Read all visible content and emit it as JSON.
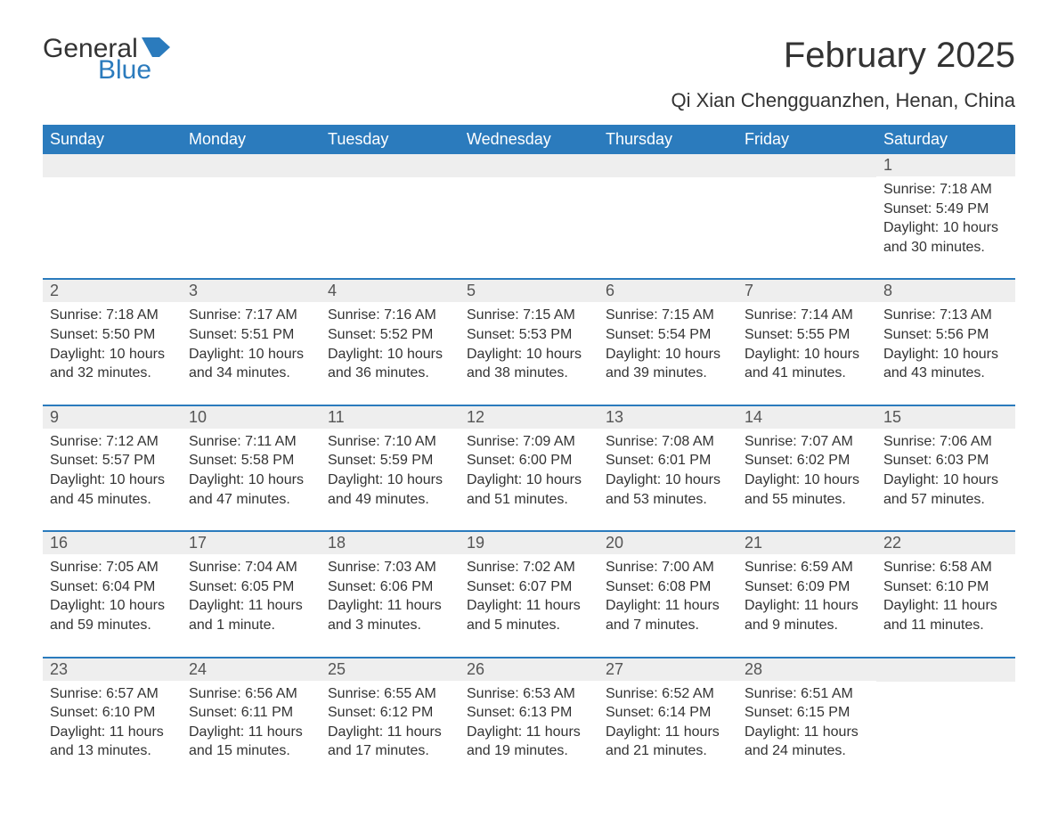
{
  "logo": {
    "text1": "General",
    "text2": "Blue",
    "flag_color": "#2b7bbd"
  },
  "title": "February 2025",
  "subtitle": "Qi Xian Chengguanzhen, Henan, China",
  "colors": {
    "header_bg": "#2b7bbd",
    "header_text": "#ffffff",
    "row_border": "#2b7bbd",
    "daynum_bg": "#eeeeee",
    "body_text": "#333333"
  },
  "day_headers": [
    "Sunday",
    "Monday",
    "Tuesday",
    "Wednesday",
    "Thursday",
    "Friday",
    "Saturday"
  ],
  "weeks": [
    [
      {
        "day": "",
        "sunrise": "",
        "sunset": "",
        "daylight": ""
      },
      {
        "day": "",
        "sunrise": "",
        "sunset": "",
        "daylight": ""
      },
      {
        "day": "",
        "sunrise": "",
        "sunset": "",
        "daylight": ""
      },
      {
        "day": "",
        "sunrise": "",
        "sunset": "",
        "daylight": ""
      },
      {
        "day": "",
        "sunrise": "",
        "sunset": "",
        "daylight": ""
      },
      {
        "day": "",
        "sunrise": "",
        "sunset": "",
        "daylight": ""
      },
      {
        "day": "1",
        "sunrise": "Sunrise: 7:18 AM",
        "sunset": "Sunset: 5:49 PM",
        "daylight": "Daylight: 10 hours and 30 minutes."
      }
    ],
    [
      {
        "day": "2",
        "sunrise": "Sunrise: 7:18 AM",
        "sunset": "Sunset: 5:50 PM",
        "daylight": "Daylight: 10 hours and 32 minutes."
      },
      {
        "day": "3",
        "sunrise": "Sunrise: 7:17 AM",
        "sunset": "Sunset: 5:51 PM",
        "daylight": "Daylight: 10 hours and 34 minutes."
      },
      {
        "day": "4",
        "sunrise": "Sunrise: 7:16 AM",
        "sunset": "Sunset: 5:52 PM",
        "daylight": "Daylight: 10 hours and 36 minutes."
      },
      {
        "day": "5",
        "sunrise": "Sunrise: 7:15 AM",
        "sunset": "Sunset: 5:53 PM",
        "daylight": "Daylight: 10 hours and 38 minutes."
      },
      {
        "day": "6",
        "sunrise": "Sunrise: 7:15 AM",
        "sunset": "Sunset: 5:54 PM",
        "daylight": "Daylight: 10 hours and 39 minutes."
      },
      {
        "day": "7",
        "sunrise": "Sunrise: 7:14 AM",
        "sunset": "Sunset: 5:55 PM",
        "daylight": "Daylight: 10 hours and 41 minutes."
      },
      {
        "day": "8",
        "sunrise": "Sunrise: 7:13 AM",
        "sunset": "Sunset: 5:56 PM",
        "daylight": "Daylight: 10 hours and 43 minutes."
      }
    ],
    [
      {
        "day": "9",
        "sunrise": "Sunrise: 7:12 AM",
        "sunset": "Sunset: 5:57 PM",
        "daylight": "Daylight: 10 hours and 45 minutes."
      },
      {
        "day": "10",
        "sunrise": "Sunrise: 7:11 AM",
        "sunset": "Sunset: 5:58 PM",
        "daylight": "Daylight: 10 hours and 47 minutes."
      },
      {
        "day": "11",
        "sunrise": "Sunrise: 7:10 AM",
        "sunset": "Sunset: 5:59 PM",
        "daylight": "Daylight: 10 hours and 49 minutes."
      },
      {
        "day": "12",
        "sunrise": "Sunrise: 7:09 AM",
        "sunset": "Sunset: 6:00 PM",
        "daylight": "Daylight: 10 hours and 51 minutes."
      },
      {
        "day": "13",
        "sunrise": "Sunrise: 7:08 AM",
        "sunset": "Sunset: 6:01 PM",
        "daylight": "Daylight: 10 hours and 53 minutes."
      },
      {
        "day": "14",
        "sunrise": "Sunrise: 7:07 AM",
        "sunset": "Sunset: 6:02 PM",
        "daylight": "Daylight: 10 hours and 55 minutes."
      },
      {
        "day": "15",
        "sunrise": "Sunrise: 7:06 AM",
        "sunset": "Sunset: 6:03 PM",
        "daylight": "Daylight: 10 hours and 57 minutes."
      }
    ],
    [
      {
        "day": "16",
        "sunrise": "Sunrise: 7:05 AM",
        "sunset": "Sunset: 6:04 PM",
        "daylight": "Daylight: 10 hours and 59 minutes."
      },
      {
        "day": "17",
        "sunrise": "Sunrise: 7:04 AM",
        "sunset": "Sunset: 6:05 PM",
        "daylight": "Daylight: 11 hours and 1 minute."
      },
      {
        "day": "18",
        "sunrise": "Sunrise: 7:03 AM",
        "sunset": "Sunset: 6:06 PM",
        "daylight": "Daylight: 11 hours and 3 minutes."
      },
      {
        "day": "19",
        "sunrise": "Sunrise: 7:02 AM",
        "sunset": "Sunset: 6:07 PM",
        "daylight": "Daylight: 11 hours and 5 minutes."
      },
      {
        "day": "20",
        "sunrise": "Sunrise: 7:00 AM",
        "sunset": "Sunset: 6:08 PM",
        "daylight": "Daylight: 11 hours and 7 minutes."
      },
      {
        "day": "21",
        "sunrise": "Sunrise: 6:59 AM",
        "sunset": "Sunset: 6:09 PM",
        "daylight": "Daylight: 11 hours and 9 minutes."
      },
      {
        "day": "22",
        "sunrise": "Sunrise: 6:58 AM",
        "sunset": "Sunset: 6:10 PM",
        "daylight": "Daylight: 11 hours and 11 minutes."
      }
    ],
    [
      {
        "day": "23",
        "sunrise": "Sunrise: 6:57 AM",
        "sunset": "Sunset: 6:10 PM",
        "daylight": "Daylight: 11 hours and 13 minutes."
      },
      {
        "day": "24",
        "sunrise": "Sunrise: 6:56 AM",
        "sunset": "Sunset: 6:11 PM",
        "daylight": "Daylight: 11 hours and 15 minutes."
      },
      {
        "day": "25",
        "sunrise": "Sunrise: 6:55 AM",
        "sunset": "Sunset: 6:12 PM",
        "daylight": "Daylight: 11 hours and 17 minutes."
      },
      {
        "day": "26",
        "sunrise": "Sunrise: 6:53 AM",
        "sunset": "Sunset: 6:13 PM",
        "daylight": "Daylight: 11 hours and 19 minutes."
      },
      {
        "day": "27",
        "sunrise": "Sunrise: 6:52 AM",
        "sunset": "Sunset: 6:14 PM",
        "daylight": "Daylight: 11 hours and 21 minutes."
      },
      {
        "day": "28",
        "sunrise": "Sunrise: 6:51 AM",
        "sunset": "Sunset: 6:15 PM",
        "daylight": "Daylight: 11 hours and 24 minutes."
      },
      {
        "day": "",
        "sunrise": "",
        "sunset": "",
        "daylight": ""
      }
    ]
  ]
}
